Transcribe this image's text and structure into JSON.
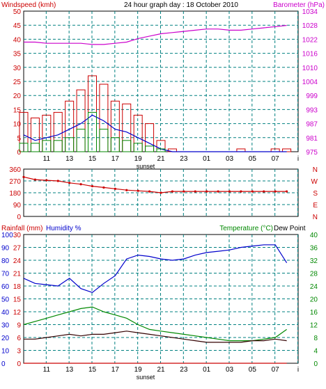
{
  "title": "24 hour graph day : 18 October 2010",
  "colors": {
    "windspeed": "#cc0000",
    "gust_avg": "#0000cc",
    "wind_green": "#008800",
    "barometer": "#cc00cc",
    "direction": "#cc0000",
    "humidity": "#0000cc",
    "temperature": "#008800",
    "dewpoint": "#330000",
    "rain": "#cc0000",
    "grid": "#008080",
    "axis_text": "#000000"
  },
  "x_ticks": [
    "11",
    "13",
    "15",
    "17",
    "19",
    "21",
    "23",
    "01",
    "03",
    "05",
    "07",
    "i"
  ],
  "sunset_label": "sunset",
  "chart_data": [
    {
      "type": "line",
      "title": "24 hour graph day : 18 October 2010",
      "ylabel_left": "Windspeed (kmh)",
      "ylabel_right": "Barometer (hPa)",
      "ylim_left": [
        0,
        50
      ],
      "ylim_right": [
        975,
        1034
      ],
      "yticks_left": [
        0,
        5,
        10,
        15,
        20,
        25,
        30,
        35,
        40,
        45,
        50
      ],
      "yticks_right": [
        975,
        981,
        987,
        993,
        999,
        1004,
        1010,
        1016,
        1022,
        1028,
        1034
      ],
      "x": [
        9,
        10,
        11,
        12,
        13,
        14,
        15,
        16,
        17,
        18,
        19,
        20,
        21,
        22,
        23,
        24,
        25,
        26,
        27,
        28,
        29,
        30,
        31,
        32
      ],
      "series": [
        {
          "name": "",
          "axis": "left",
          "color_key": "windspeed",
          "values": [
            14,
            12,
            13,
            14,
            18,
            22,
            27,
            24,
            18,
            17,
            13,
            10,
            4,
            1,
            0,
            0,
            0,
            0,
            0,
            1,
            0,
            0,
            1,
            1
          ]
        },
        {
          "name": "",
          "axis": "left",
          "color_key": "gust_avg",
          "values": [
            6,
            4,
            5,
            6,
            8,
            10,
            13,
            11,
            8,
            7,
            5,
            3,
            1,
            0,
            0,
            0,
            0,
            0,
            0,
            0,
            0,
            0,
            0,
            0
          ]
        },
        {
          "name": "",
          "axis": "left",
          "color_key": "wind_green",
          "values": [
            3,
            3,
            4,
            4,
            5,
            8,
            14,
            8,
            5,
            4,
            3,
            2,
            1,
            0,
            0,
            0,
            0,
            0,
            0,
            0,
            0,
            0,
            0,
            0
          ]
        },
        {
          "name": "",
          "axis": "right",
          "color_key": "barometer",
          "values": [
            1021,
            1021,
            1020.5,
            1020.5,
            1020.5,
            1020.5,
            1020,
            1020,
            1020.5,
            1021,
            1022.5,
            1023.5,
            1024.5,
            1025,
            1025.5,
            1026,
            1026.5,
            1026.5,
            1026,
            1026,
            1026.5,
            1027,
            1027.5,
            1028
          ]
        }
      ]
    },
    {
      "type": "scatter",
      "ylim": [
        0,
        360
      ],
      "yticks_left": [
        0,
        90,
        180,
        270,
        360
      ],
      "yticks_right": [
        "N",
        "E",
        "S",
        "W",
        "N"
      ],
      "x": [
        9,
        10,
        11,
        12,
        13,
        14,
        15,
        16,
        17,
        18,
        19,
        20,
        21,
        22,
        23,
        24,
        25,
        26,
        27,
        28,
        29,
        30,
        31,
        32
      ],
      "series": [
        {
          "name": "",
          "color_key": "direction",
          "values": [
            300,
            280,
            275,
            270,
            255,
            245,
            230,
            220,
            210,
            200,
            195,
            190,
            180,
            190,
            190,
            190,
            190,
            190,
            190,
            190,
            190,
            190,
            190,
            190
          ]
        }
      ]
    },
    {
      "type": "line",
      "ylabel_left": "Rainfall (mm)",
      "ylabel_left2": "Humidity %",
      "ylabel_right": "Temperature (°C)",
      "ylabel_right2": "Dew Point",
      "ylim_left": [
        0,
        30
      ],
      "ylim_left2": [
        0,
        100
      ],
      "ylim_right": [
        0,
        40
      ],
      "yticks_left": [
        0,
        3,
        6,
        9,
        12,
        15,
        18,
        21,
        24,
        27,
        30
      ],
      "yticks_left2": [
        0,
        10,
        20,
        30,
        40,
        50,
        60,
        70,
        80,
        90,
        100
      ],
      "yticks_right": [
        0,
        4,
        8,
        12,
        16,
        20,
        24,
        28,
        32,
        36,
        40
      ],
      "x": [
        9,
        10,
        11,
        12,
        13,
        14,
        15,
        16,
        17,
        18,
        19,
        20,
        21,
        22,
        23,
        24,
        25,
        26,
        27,
        28,
        29,
        30,
        31,
        32
      ],
      "series": [
        {
          "name": "",
          "axis": "left2",
          "color_key": "humidity",
          "values": [
            66,
            62,
            61,
            60,
            66,
            58,
            55,
            62,
            68,
            81,
            84,
            83,
            81,
            80,
            81,
            84,
            86,
            87,
            88,
            90,
            91,
            92,
            92,
            78
          ]
        },
        {
          "name": "",
          "axis": "right",
          "color_key": "temperature",
          "values": [
            12,
            13,
            14,
            15,
            16,
            17,
            17.5,
            16,
            15,
            14,
            12,
            10.5,
            10,
            9.5,
            9,
            8.5,
            8,
            7.5,
            7,
            7,
            7,
            7.5,
            8,
            10.5
          ]
        },
        {
          "name": "",
          "axis": "right",
          "color_key": "dewpoint",
          "values": [
            7.5,
            7.5,
            8,
            8.5,
            9,
            8.5,
            9,
            9,
            9.5,
            10,
            9.5,
            9,
            8.5,
            8,
            7.5,
            7,
            6.5,
            6.5,
            6.5,
            6.5,
            7,
            7,
            7.5,
            7
          ]
        },
        {
          "name": "",
          "axis": "left",
          "color_key": "rain",
          "values": [
            0,
            0,
            0,
            0,
            0,
            0,
            0,
            0,
            0,
            0,
            0,
            0,
            0,
            0,
            0,
            0,
            0,
            0,
            0,
            0,
            0,
            0,
            0,
            0
          ]
        }
      ]
    }
  ]
}
